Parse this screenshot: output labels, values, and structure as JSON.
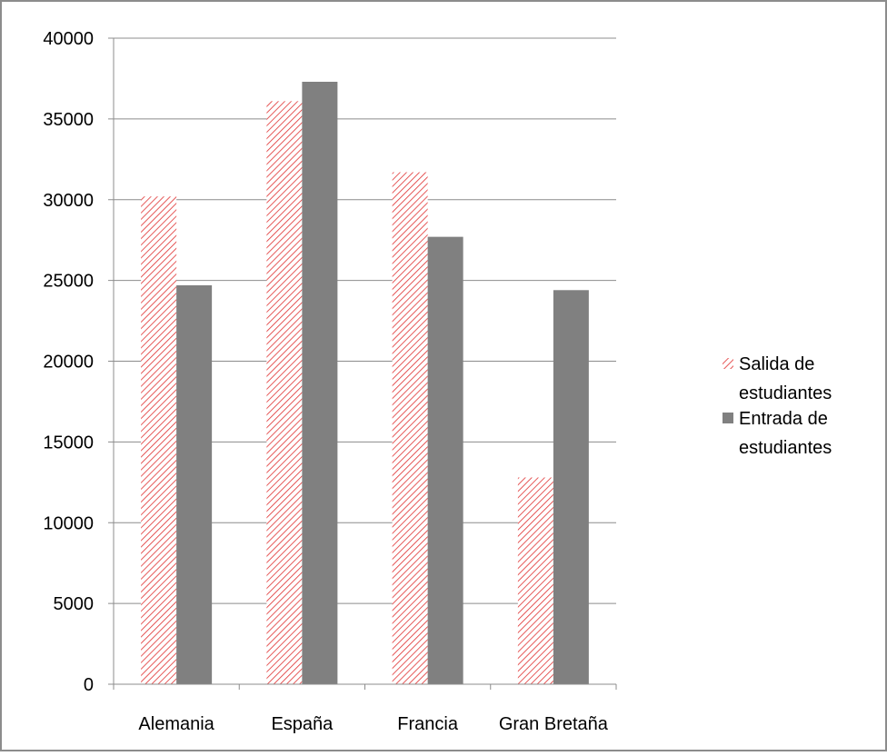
{
  "chart_data": {
    "type": "bar",
    "categories": [
      "Alemania",
      "España",
      "Francia",
      "Gran Bretaña"
    ],
    "series": [
      {
        "name": "Salida de estudiantes",
        "values": [
          30200,
          36100,
          31700,
          12800
        ],
        "color": "#e03030",
        "fill": "diagonal-hatch"
      },
      {
        "name": "Entrada de estudiantes",
        "values": [
          24700,
          37300,
          27700,
          24400
        ],
        "color": "#808080",
        "fill": "solid"
      }
    ],
    "yticks": [
      "0",
      "5000",
      "10000",
      "15000",
      "20000",
      "25000",
      "30000",
      "35000",
      "40000"
    ],
    "ylim": [
      0,
      40000
    ],
    "grid": true,
    "legend": {
      "position": "right",
      "entries": [
        {
          "line1": "Salida de",
          "line2": "estudiantes"
        },
        {
          "line1": "Entrada de",
          "line2": "estudiantes"
        }
      ]
    },
    "title": "",
    "xlabel": "",
    "ylabel": ""
  }
}
